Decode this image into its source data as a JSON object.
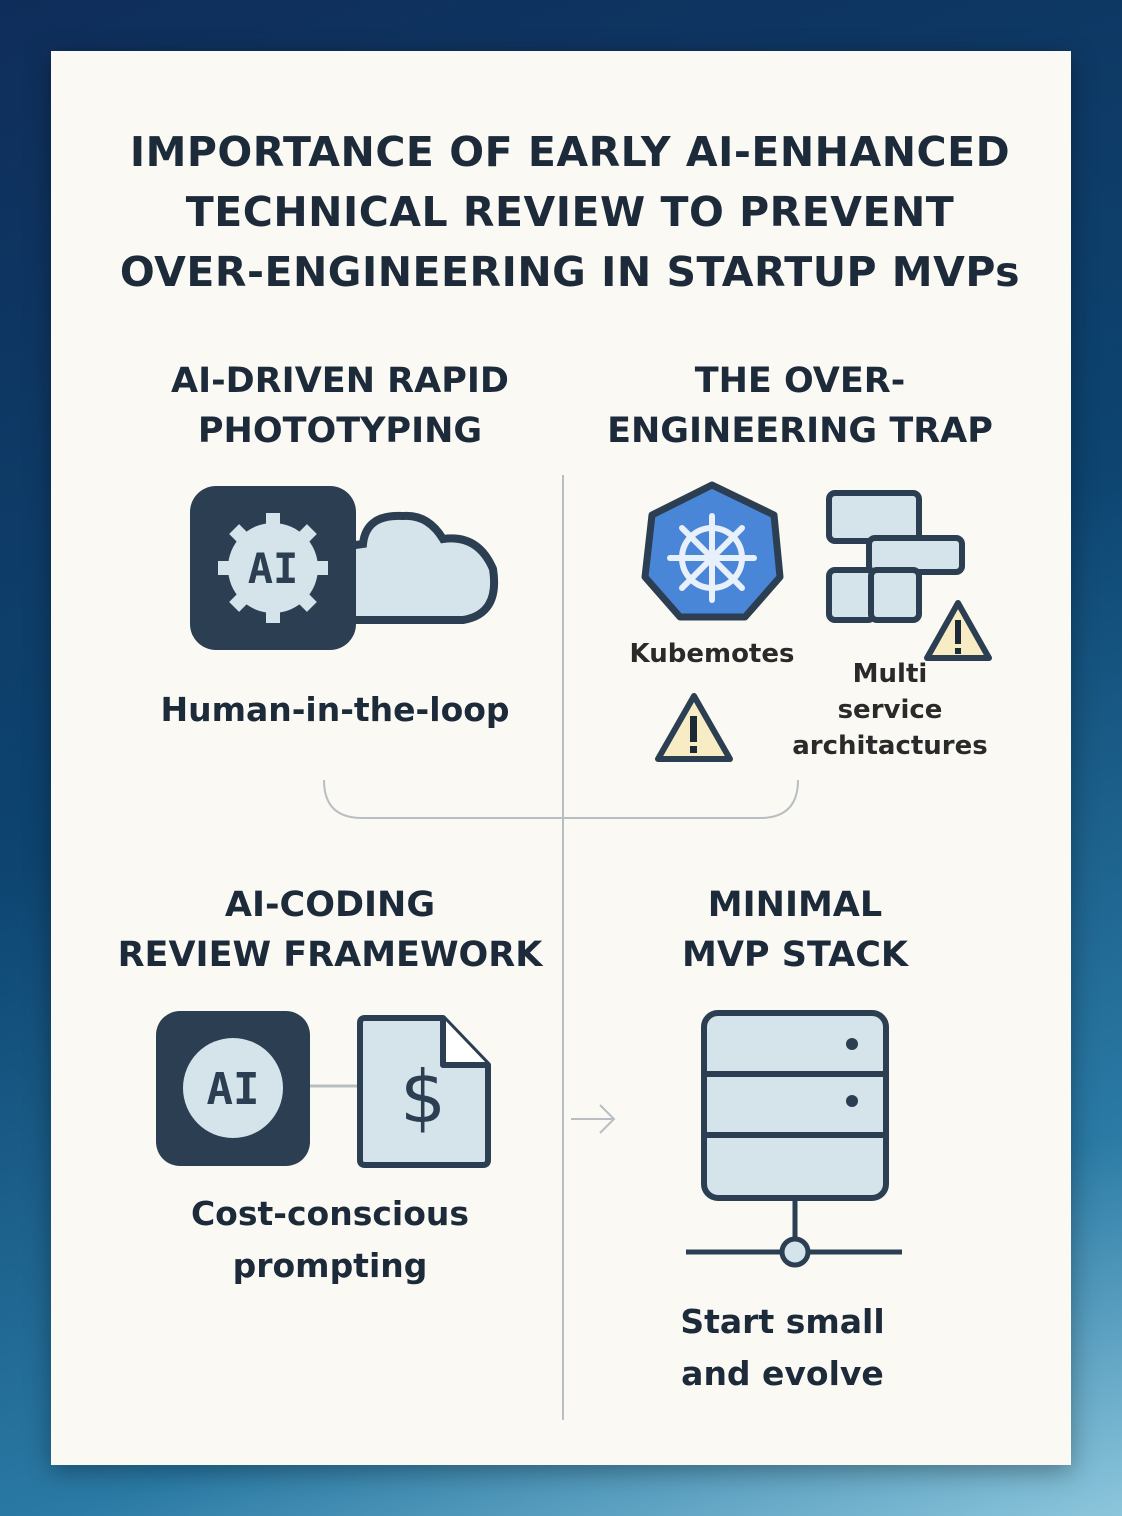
{
  "title": {
    "lines": [
      "IMPORTANCE OF EARLY AI-ENHANCED",
      "TECHNICAL REVIEW TO PREVENT",
      "OVER-ENGINEERING IN STARTUP MVPs"
    ]
  },
  "colors": {
    "navy": "#2b3e52",
    "light_fill": "#d4e4ea",
    "k8s_blue": "#4a86d8",
    "warning_fill": "#f7ecc4",
    "card": "#faf9f4"
  },
  "sections": [
    {
      "heading": [
        "AI-DRIVEN RAPID",
        "PHOTOTYPING"
      ],
      "icons": [
        "ai-gear-icon",
        "cloud-icon"
      ],
      "caption": "Human-in-the-loop"
    },
    {
      "heading": [
        "THE OVER-",
        "ENGINEERING TRAP"
      ],
      "icons": [
        "kubernetes-icon",
        "microservices-blocks-icon",
        "warning-icon"
      ],
      "kubernetes_label": "Kubemotes",
      "multi_label": [
        "Multi",
        "service",
        "architactures"
      ]
    },
    {
      "heading": [
        "AI-CODING",
        "REVIEW FRAMEWORK"
      ],
      "icons": [
        "ai-badge-icon",
        "dollar-document-icon"
      ],
      "ai_text": "AI",
      "caption": [
        "Cost-conscious",
        "prompting"
      ]
    },
    {
      "heading": [
        "MINIMAL",
        "MVP STACK"
      ],
      "icons": [
        "server-stack-icon",
        "arrow-right-icon"
      ],
      "caption": [
        "Start small",
        "and evolve"
      ]
    }
  ],
  "ai_gear_text": "AI"
}
